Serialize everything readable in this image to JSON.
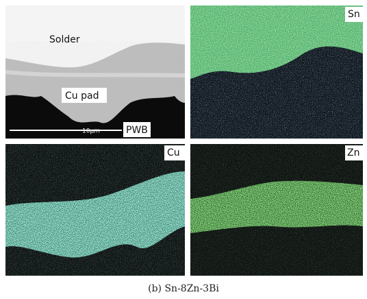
{
  "panels": {
    "sem": {
      "solder": "Solder",
      "cu_pad": "Cu pad",
      "pwb": "PWB",
      "scale_bar": "10μm"
    },
    "sn": {
      "label": "Sn"
    },
    "cu": {
      "label": "Cu"
    },
    "zn": {
      "label": "Zn"
    }
  },
  "caption": "(b) Sn-8Zn-3Bi"
}
